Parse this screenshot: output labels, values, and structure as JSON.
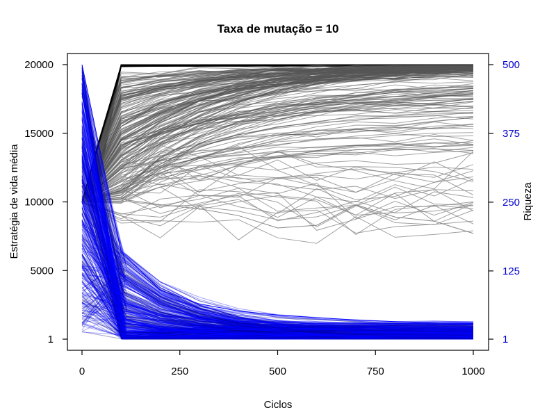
{
  "chart_data": {
    "type": "line",
    "title": "Taxa de mutação = 10",
    "xlabel": "Ciclos",
    "ylabel_left": "Estratégia de vida média",
    "ylabel_right": "Riqueza",
    "xlim": [
      0,
      1000
    ],
    "ylim_left": [
      1,
      20000
    ],
    "ylim_right": [
      1,
      500
    ],
    "x_ticks": [
      "0",
      "250",
      "500",
      "750",
      "1000"
    ],
    "y_left_ticks": [
      "1",
      "5000",
      "10000",
      "15000",
      "20000"
    ],
    "y_right_ticks": [
      "1",
      "125",
      "250",
      "375",
      "500"
    ],
    "x": [
      0,
      100,
      200,
      300,
      400,
      500,
      600,
      700,
      800,
      900,
      1000
    ],
    "grid": false,
    "colors": {
      "left_axis": "#000000",
      "right_axis": "#0000cc",
      "strategy_lines": "#555555",
      "wealth_lines": "#0000ff"
    },
    "series": [
      {
        "axis": "left",
        "color": "#000000",
        "summary": "Estratégia de vida média por indivíduo: começa em 10000, a maioria sobe para 20000 por volta do ciclo 100; um grupo converge gradualmente entre 15000 e 19000; algumas linhas ficam entre 7700 e 13000 até o ciclo 1000",
        "values": [
          10000,
          20000,
          20000,
          20000,
          20000,
          20000,
          20000,
          20000,
          20000,
          20000,
          20000
        ]
      },
      {
        "axis": "left",
        "color": "#555555",
        "values": [
          10000,
          15500,
          17200,
          17900,
          18300,
          18600,
          18800,
          18900,
          19000,
          19100,
          19200
        ]
      },
      {
        "axis": "left",
        "color": "#888888",
        "values": [
          10000,
          10200,
          9800,
          9500,
          9000,
          8100,
          8300,
          9800,
          8900,
          8600,
          7700
        ]
      },
      {
        "axis": "right",
        "color": "#0000ff",
        "summary": "Riqueza por indivíduo: começa em até 500, cai abruptamente até o ciclo 100 e decai para valores próximos de 1 a 30 até o ciclo 1000",
        "values": [
          500,
          160,
          90,
          65,
          52,
          45,
          40,
          36,
          33,
          31,
          30
        ]
      },
      {
        "axis": "right",
        "color": "#0000ff",
        "values": [
          250,
          40,
          20,
          14,
          11,
          9,
          8,
          7,
          6,
          6,
          5
        ]
      }
    ]
  }
}
